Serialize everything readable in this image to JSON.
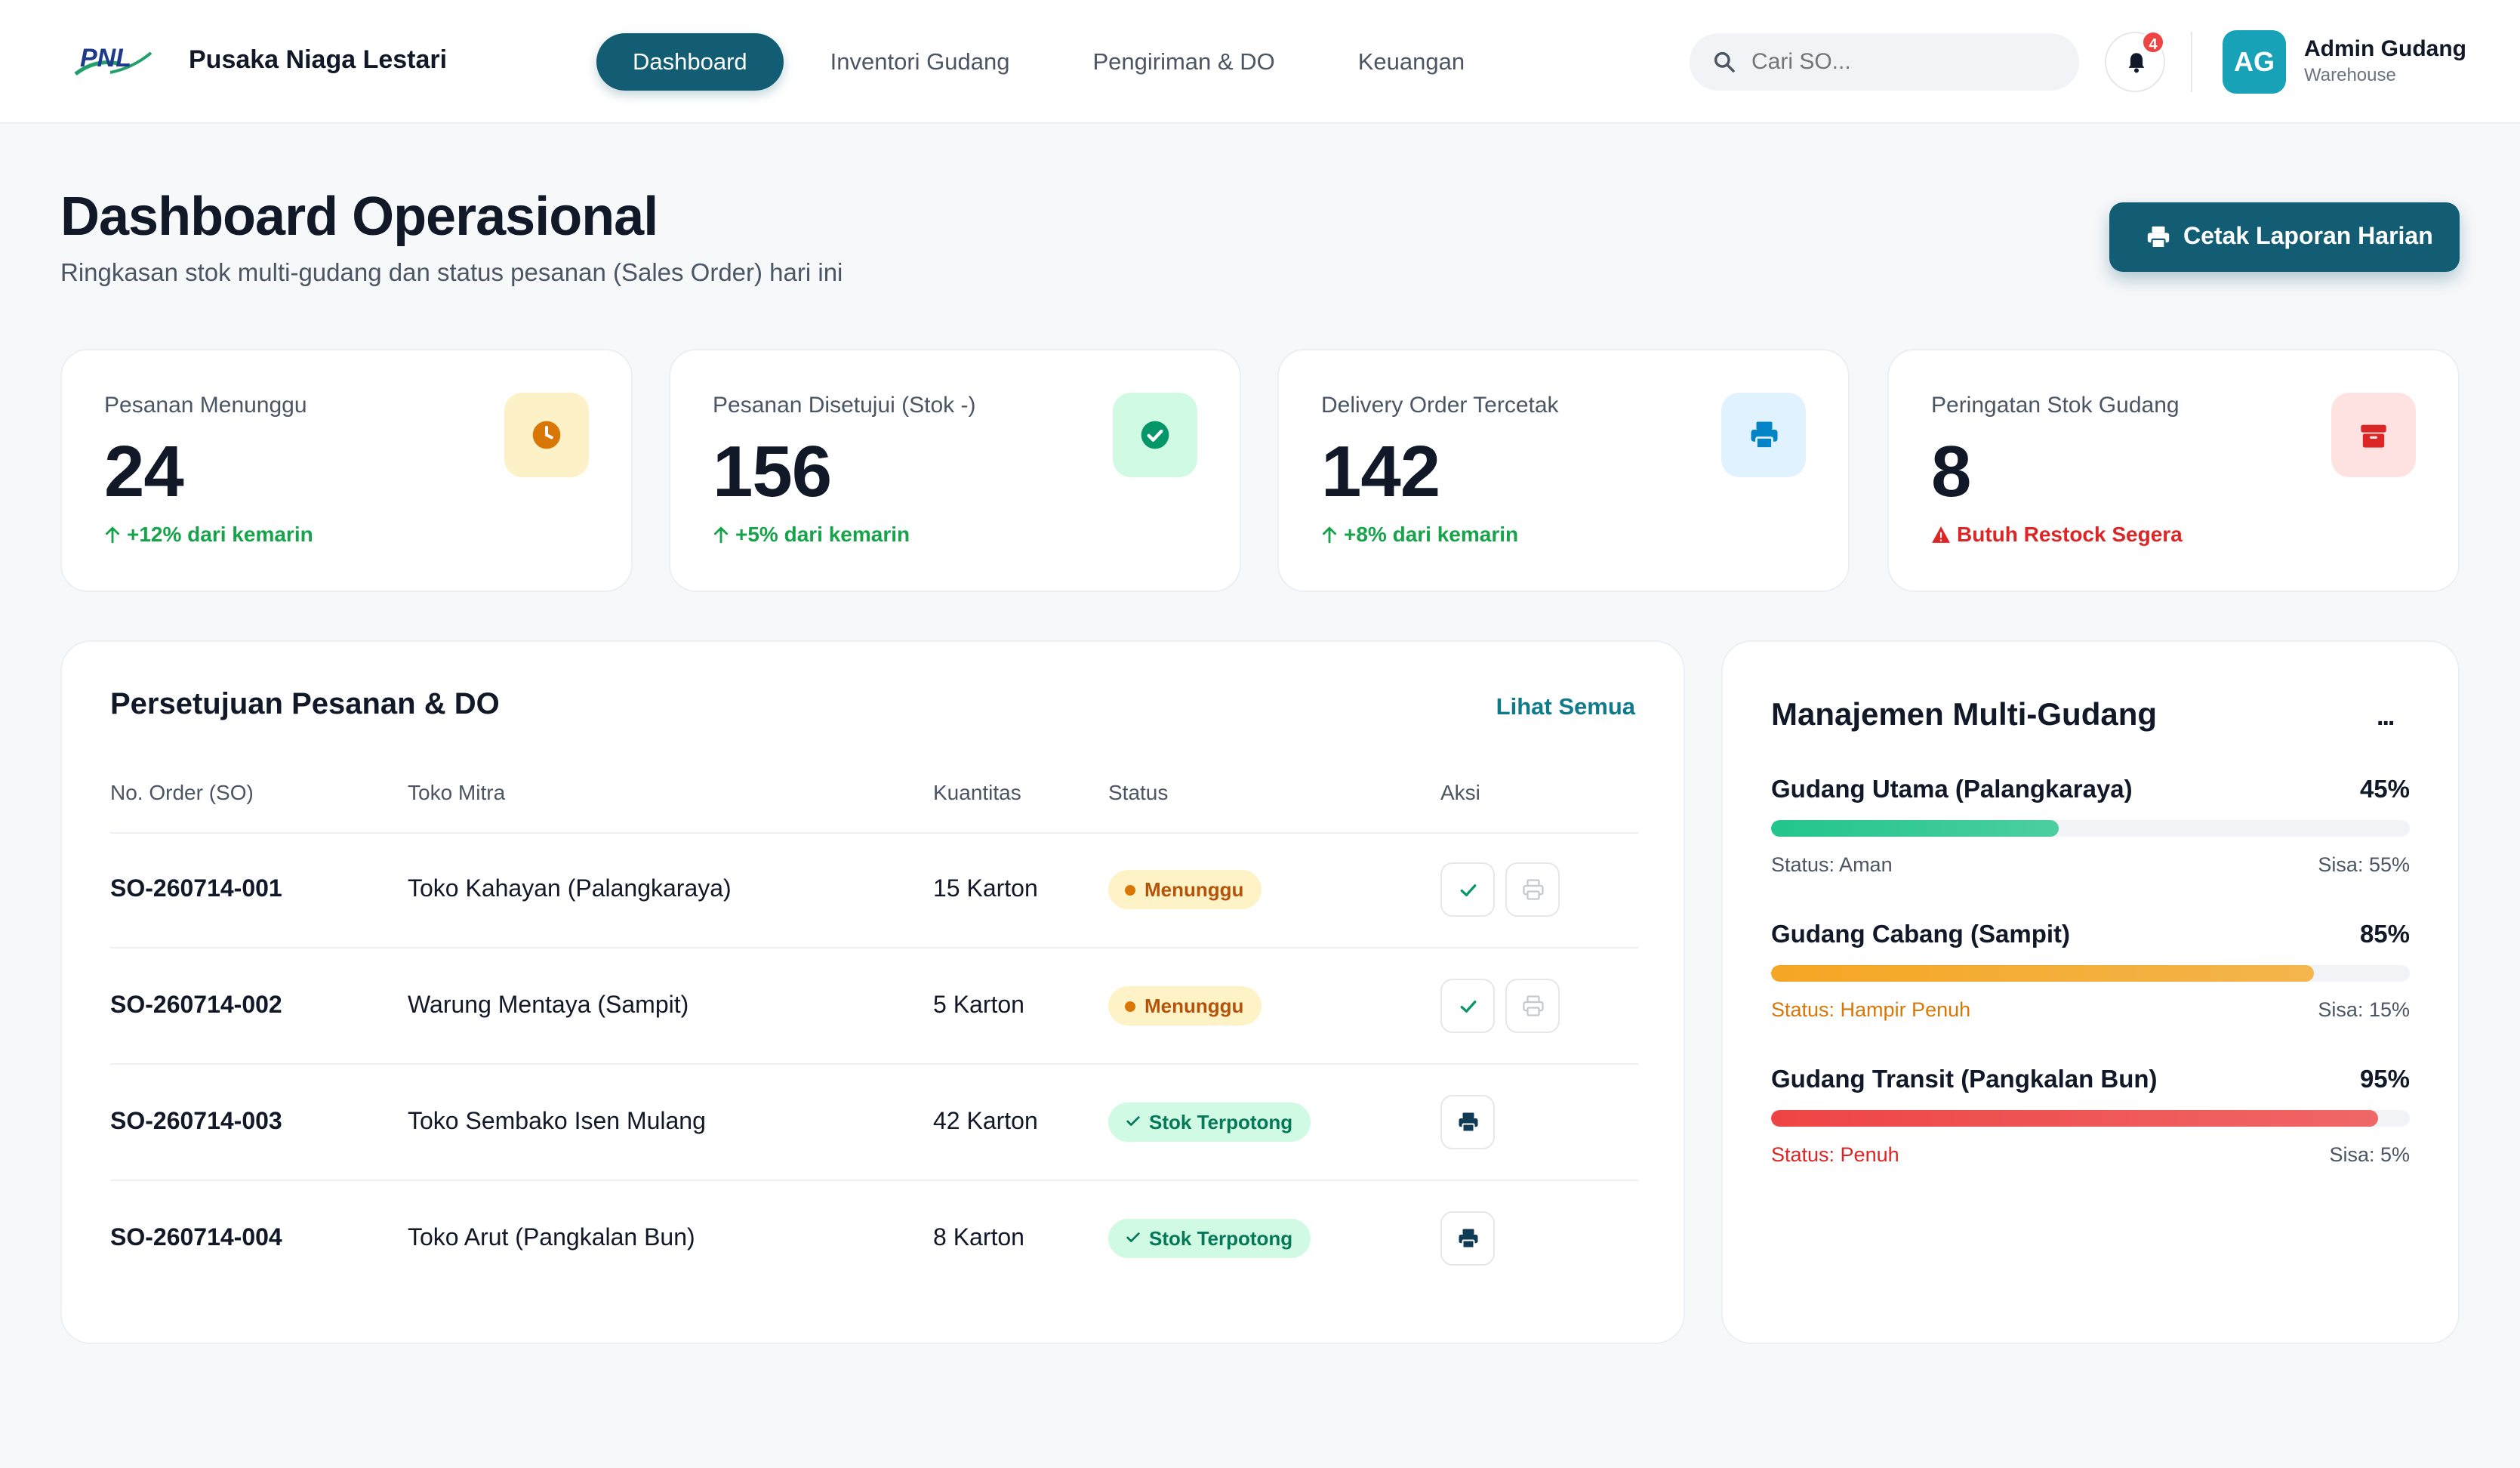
{
  "app": {
    "logo_text": "PNL",
    "name": "Pusaka Niaga Lestari"
  },
  "nav": {
    "items": [
      {
        "label": "Dashboard",
        "active": true
      },
      {
        "label": "Inventori Gudang",
        "active": false
      },
      {
        "label": "Pengiriman & DO",
        "active": false
      },
      {
        "label": "Keuangan",
        "active": false
      }
    ]
  },
  "search": {
    "placeholder": "Cari SO...",
    "value": ""
  },
  "notifications": {
    "count": "4"
  },
  "user": {
    "initials": "AG",
    "name": "Admin Gudang",
    "role": "Warehouse"
  },
  "page": {
    "title": "Dashboard Operasional",
    "subtitle": "Ringkasan stok multi-gudang dan status pesanan (Sales Order) hari ini",
    "print_button": "Cetak Laporan Harian"
  },
  "stats": [
    {
      "label": "Pesanan Menunggu",
      "value": "24",
      "trend": "+12% dari kemarin",
      "icon": "clock-icon",
      "icon_bg": "#fdf1c7",
      "icon_color": "#d97706",
      "trend_color": "#16a34a"
    },
    {
      "label": "Pesanan Disetujui (Stok -)",
      "value": "156",
      "trend": "+5% dari kemarin",
      "icon": "check-circle-icon",
      "icon_bg": "#d1fae5",
      "icon_color": "#059669",
      "trend_color": "#16a34a"
    },
    {
      "label": "Delivery Order Tercetak",
      "value": "142",
      "trend": "+8% dari kemarin",
      "icon": "printer-icon",
      "icon_bg": "#e0f2fe",
      "icon_color": "#0284c7",
      "trend_color": "#16a34a"
    },
    {
      "label": "Peringatan Stok Gudang",
      "value": "8",
      "trend": "Butuh Restock Segera",
      "icon": "box-icon",
      "icon_bg": "#fee2e2",
      "icon_color": "#dc2626",
      "trend_color": "#dc2626"
    }
  ],
  "orders": {
    "title": "Persetujuan Pesanan & DO",
    "see_all": "Lihat Semua",
    "columns": [
      "No. Order (SO)",
      "Toko Mitra",
      "Kuantitas",
      "Status",
      "Aksi"
    ],
    "rows": [
      {
        "so": "SO-260714-001",
        "store": "Toko Kahayan (Palangkaraya)",
        "qty": "15 Karton",
        "status": "Menunggu",
        "status_type": "wait"
      },
      {
        "so": "SO-260714-002",
        "store": "Warung Mentaya (Sampit)",
        "qty": "5 Karton",
        "status": "Menunggu",
        "status_type": "wait"
      },
      {
        "so": "SO-260714-003",
        "store": "Toko Sembako Isen Mulang",
        "qty": "42 Karton",
        "status": "Stok Terpotong",
        "status_type": "ok"
      },
      {
        "so": "SO-260714-004",
        "store": "Toko Arut (Pangkalan Bun)",
        "qty": "8 Karton",
        "status": "Stok Terpotong",
        "status_type": "ok"
      }
    ]
  },
  "warehouses": {
    "title": "Manajemen Multi-Gudang",
    "more": "...",
    "items": [
      {
        "name": "Gudang Utama (Palangkaraya)",
        "percent_label": "45%",
        "fill": 0.45,
        "status": "Status: Aman",
        "remaining": "Sisa: 55%",
        "color": "#22c58b",
        "status_color": "#4b5563"
      },
      {
        "name": "Gudang Cabang (Sampit)",
        "percent_label": "85%",
        "fill": 0.85,
        "status": "Status: Hampir Penuh",
        "remaining": "Sisa: 15%",
        "color": "#f5a623",
        "status_color": "#d97706"
      },
      {
        "name": "Gudang Transit (Pangkalan Bun)",
        "percent_label": "95%",
        "fill": 0.95,
        "status": "Status: Penuh",
        "remaining": "Sisa: 5%",
        "color": "#ef4444",
        "status_color": "#dc2626"
      }
    ]
  }
}
